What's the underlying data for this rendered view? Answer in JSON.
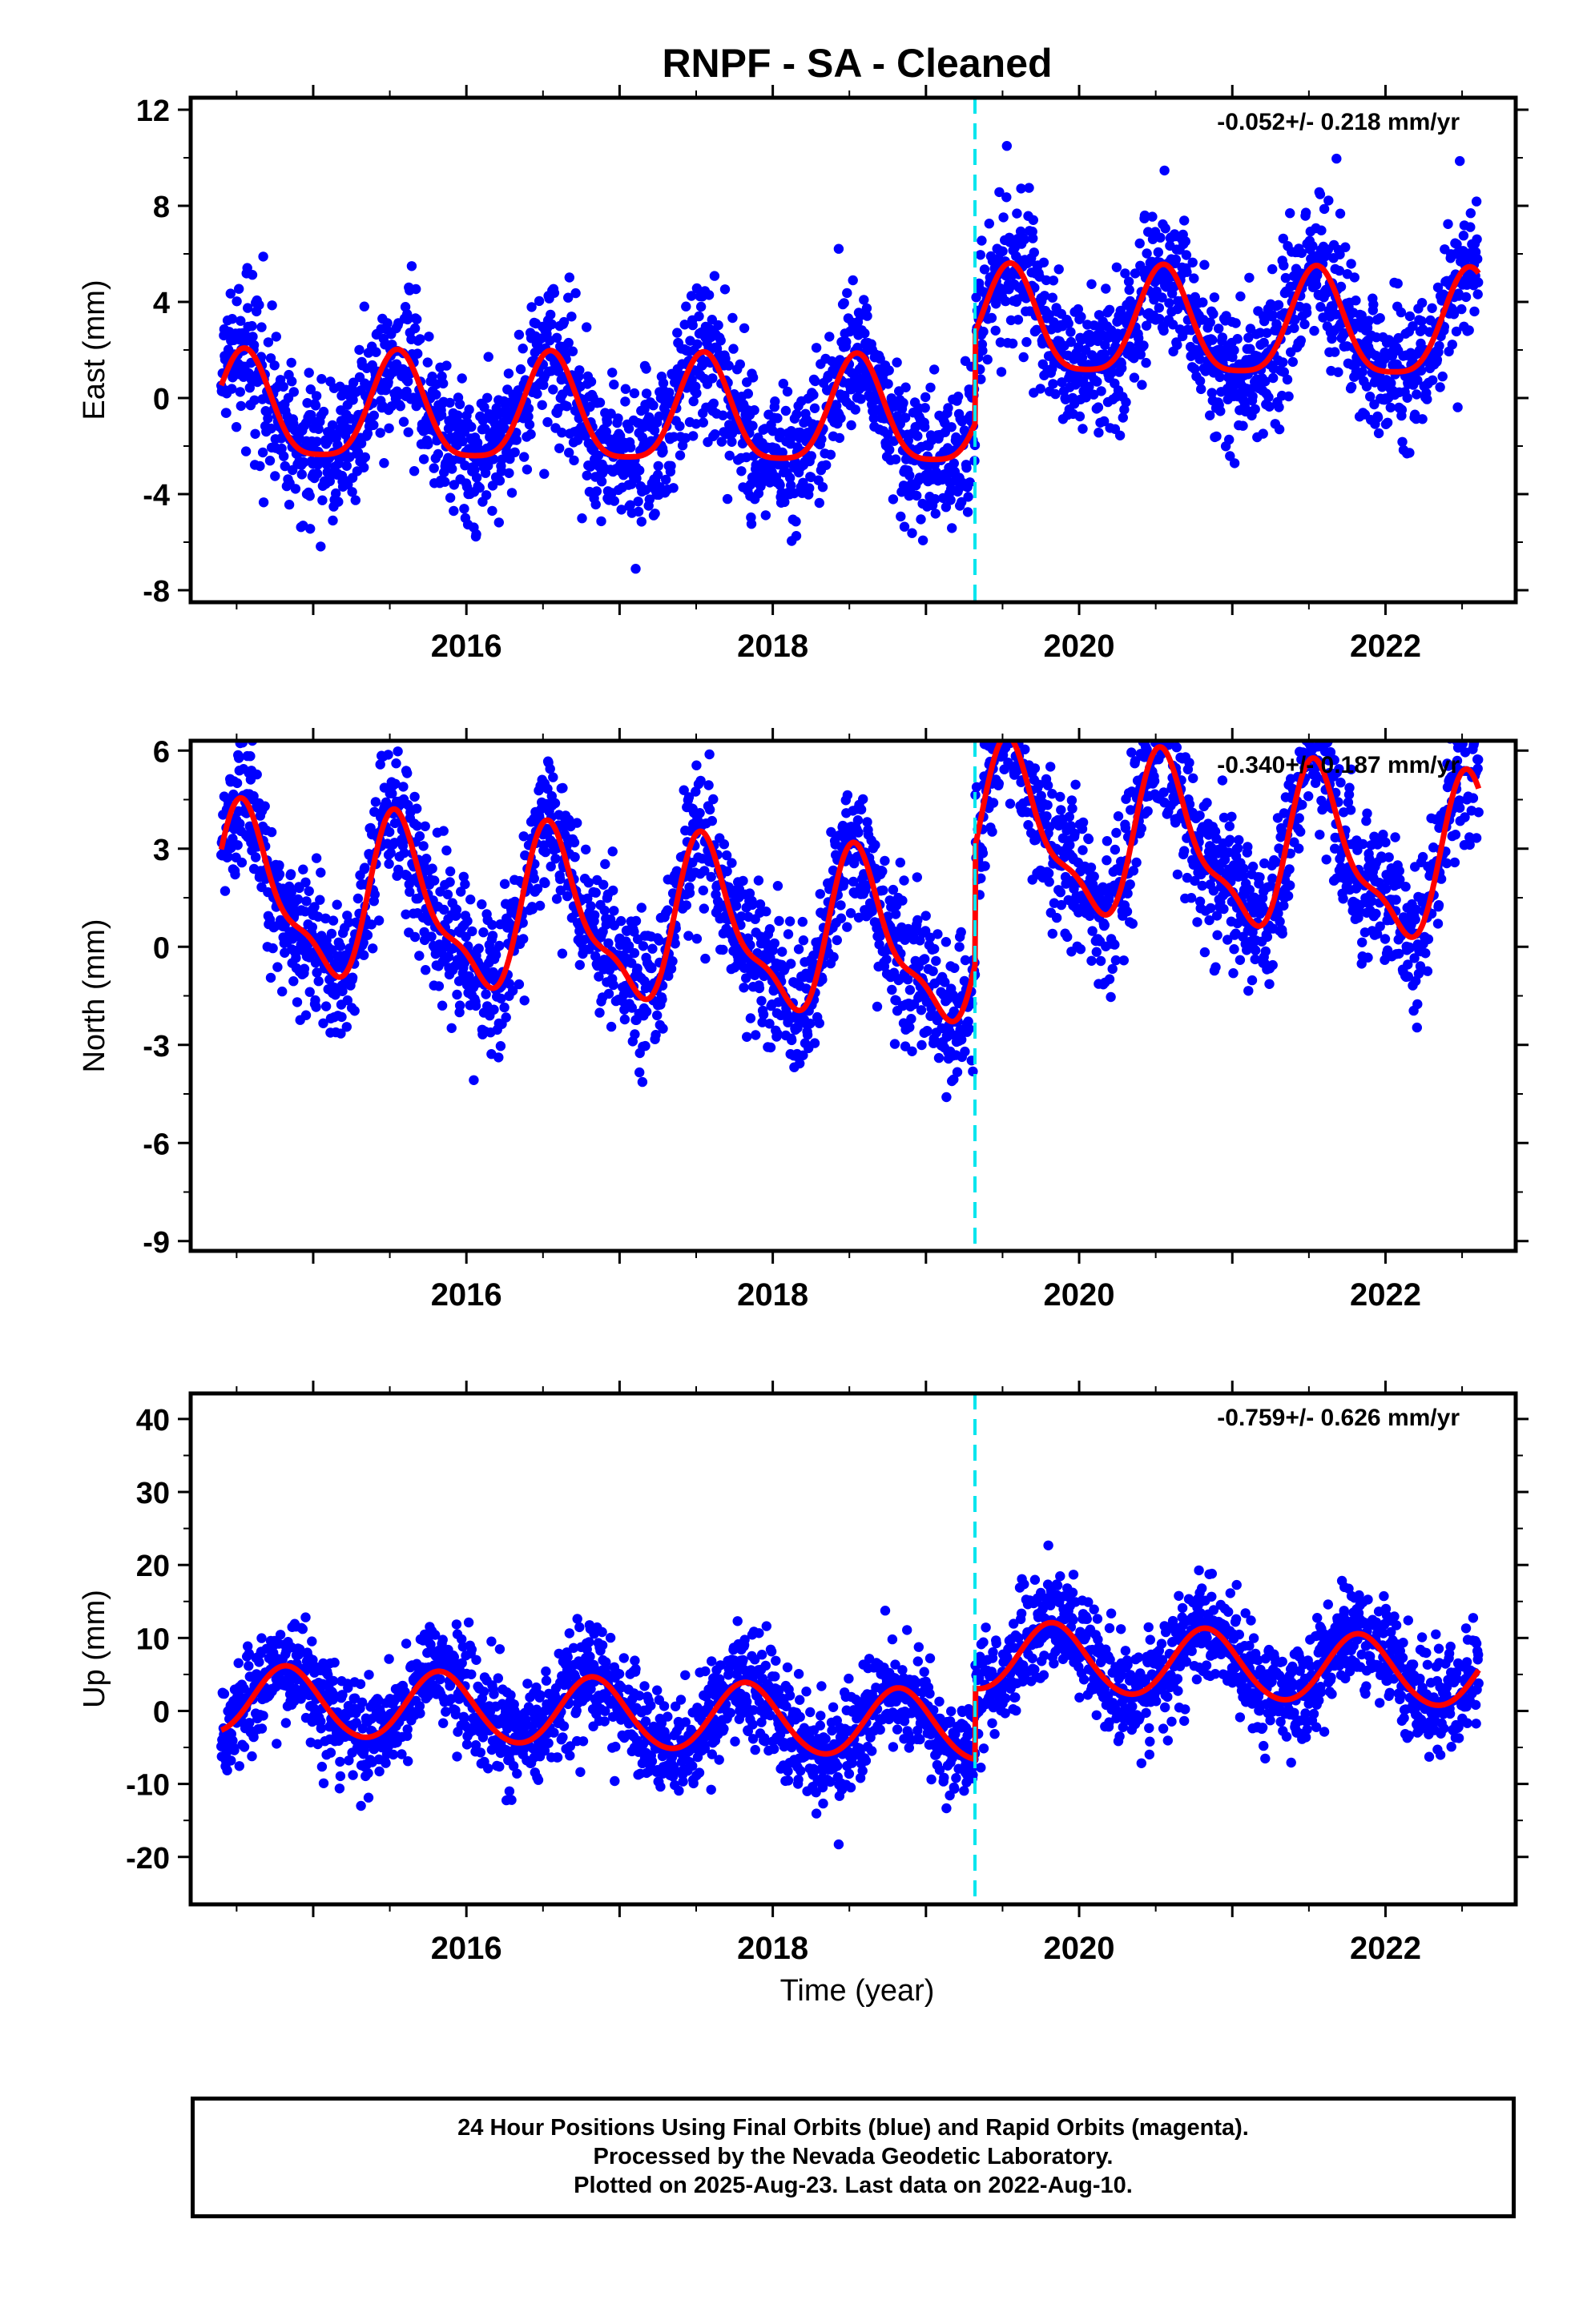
{
  "title": "RNPF  - SA - Cleaned",
  "xlabel": "Time (year)",
  "caption": {
    "line1": "24 Hour Positions Using Final Orbits (blue) and Rapid Orbits (magenta).",
    "line2": "Processed by the Nevada Geodetic Laboratory.",
    "line3": "Plotted on 2025-Aug-23. Last data on 2022-Aug-10."
  },
  "colors": {
    "points": "#0000ff",
    "model": "#ff0000",
    "offset": "#00e5ee",
    "frame": "#000000"
  },
  "chart_data": [
    {
      "type": "scatter",
      "name": "east",
      "ylabel": "East (mm)",
      "rate_label": "-0.052+/- 0.218 mm/yr",
      "xlim": [
        2014.2,
        2022.85
      ],
      "ylim": [
        -8.5,
        12.5
      ],
      "yticks": [
        -8,
        -4,
        0,
        4,
        8,
        12
      ],
      "xticks": [
        2016,
        2018,
        2020,
        2022
      ],
      "offset_epoch": 2019.32,
      "data_start": 2014.4,
      "data_end": 2022.61,
      "model": {
        "offset_before": -0.8,
        "offset_after": 3.0,
        "trend_mm_per_yr": -0.052,
        "annual_amp": 2.2,
        "annual_peak_frac": 0.55,
        "semi_amp": 0.5,
        "semi_peak_frac": 0.55,
        "noise_sigma": 1.5
      }
    },
    {
      "type": "scatter",
      "name": "north",
      "ylabel": "North (mm)",
      "rate_label": "-0.340+/- 0.187 mm/yr",
      "xlim": [
        2014.2,
        2022.85
      ],
      "ylim": [
        -9.3,
        6.3
      ],
      "yticks": [
        -9,
        -6,
        -3,
        0,
        3,
        6
      ],
      "xticks": [
        2016,
        2018,
        2020,
        2022
      ],
      "offset_epoch": 2019.32,
      "data_start": 2014.4,
      "data_end": 2022.61,
      "model": {
        "offset_before": 0.4,
        "offset_after": 4.0,
        "trend_mm_per_yr": -0.34,
        "annual_amp": 2.3,
        "annual_peak_frac": 0.57,
        "semi_amp": 0.8,
        "semi_peak_frac": 0.5,
        "noise_sigma": 1.1
      }
    },
    {
      "type": "scatter",
      "name": "up",
      "ylabel": "Up (mm)",
      "rate_label": "-0.759+/- 0.626 mm/yr",
      "xlim": [
        2014.2,
        2022.85
      ],
      "ylim": [
        -26.5,
        43.5
      ],
      "yticks": [
        -20,
        -10,
        0,
        10,
        20,
        30,
        40
      ],
      "xticks": [
        2016,
        2018,
        2020,
        2022
      ],
      "offset_epoch": 2019.32,
      "data_start": 2014.4,
      "data_end": 2022.61,
      "model": {
        "offset_before": -1.2,
        "offset_after": 8.5,
        "trend_mm_per_yr": -0.759,
        "annual_amp": 4.7,
        "annual_peak_frac": 0.83,
        "semi_amp": 0.3,
        "semi_peak_frac": 0.3,
        "noise_sigma": 3.6
      }
    }
  ]
}
